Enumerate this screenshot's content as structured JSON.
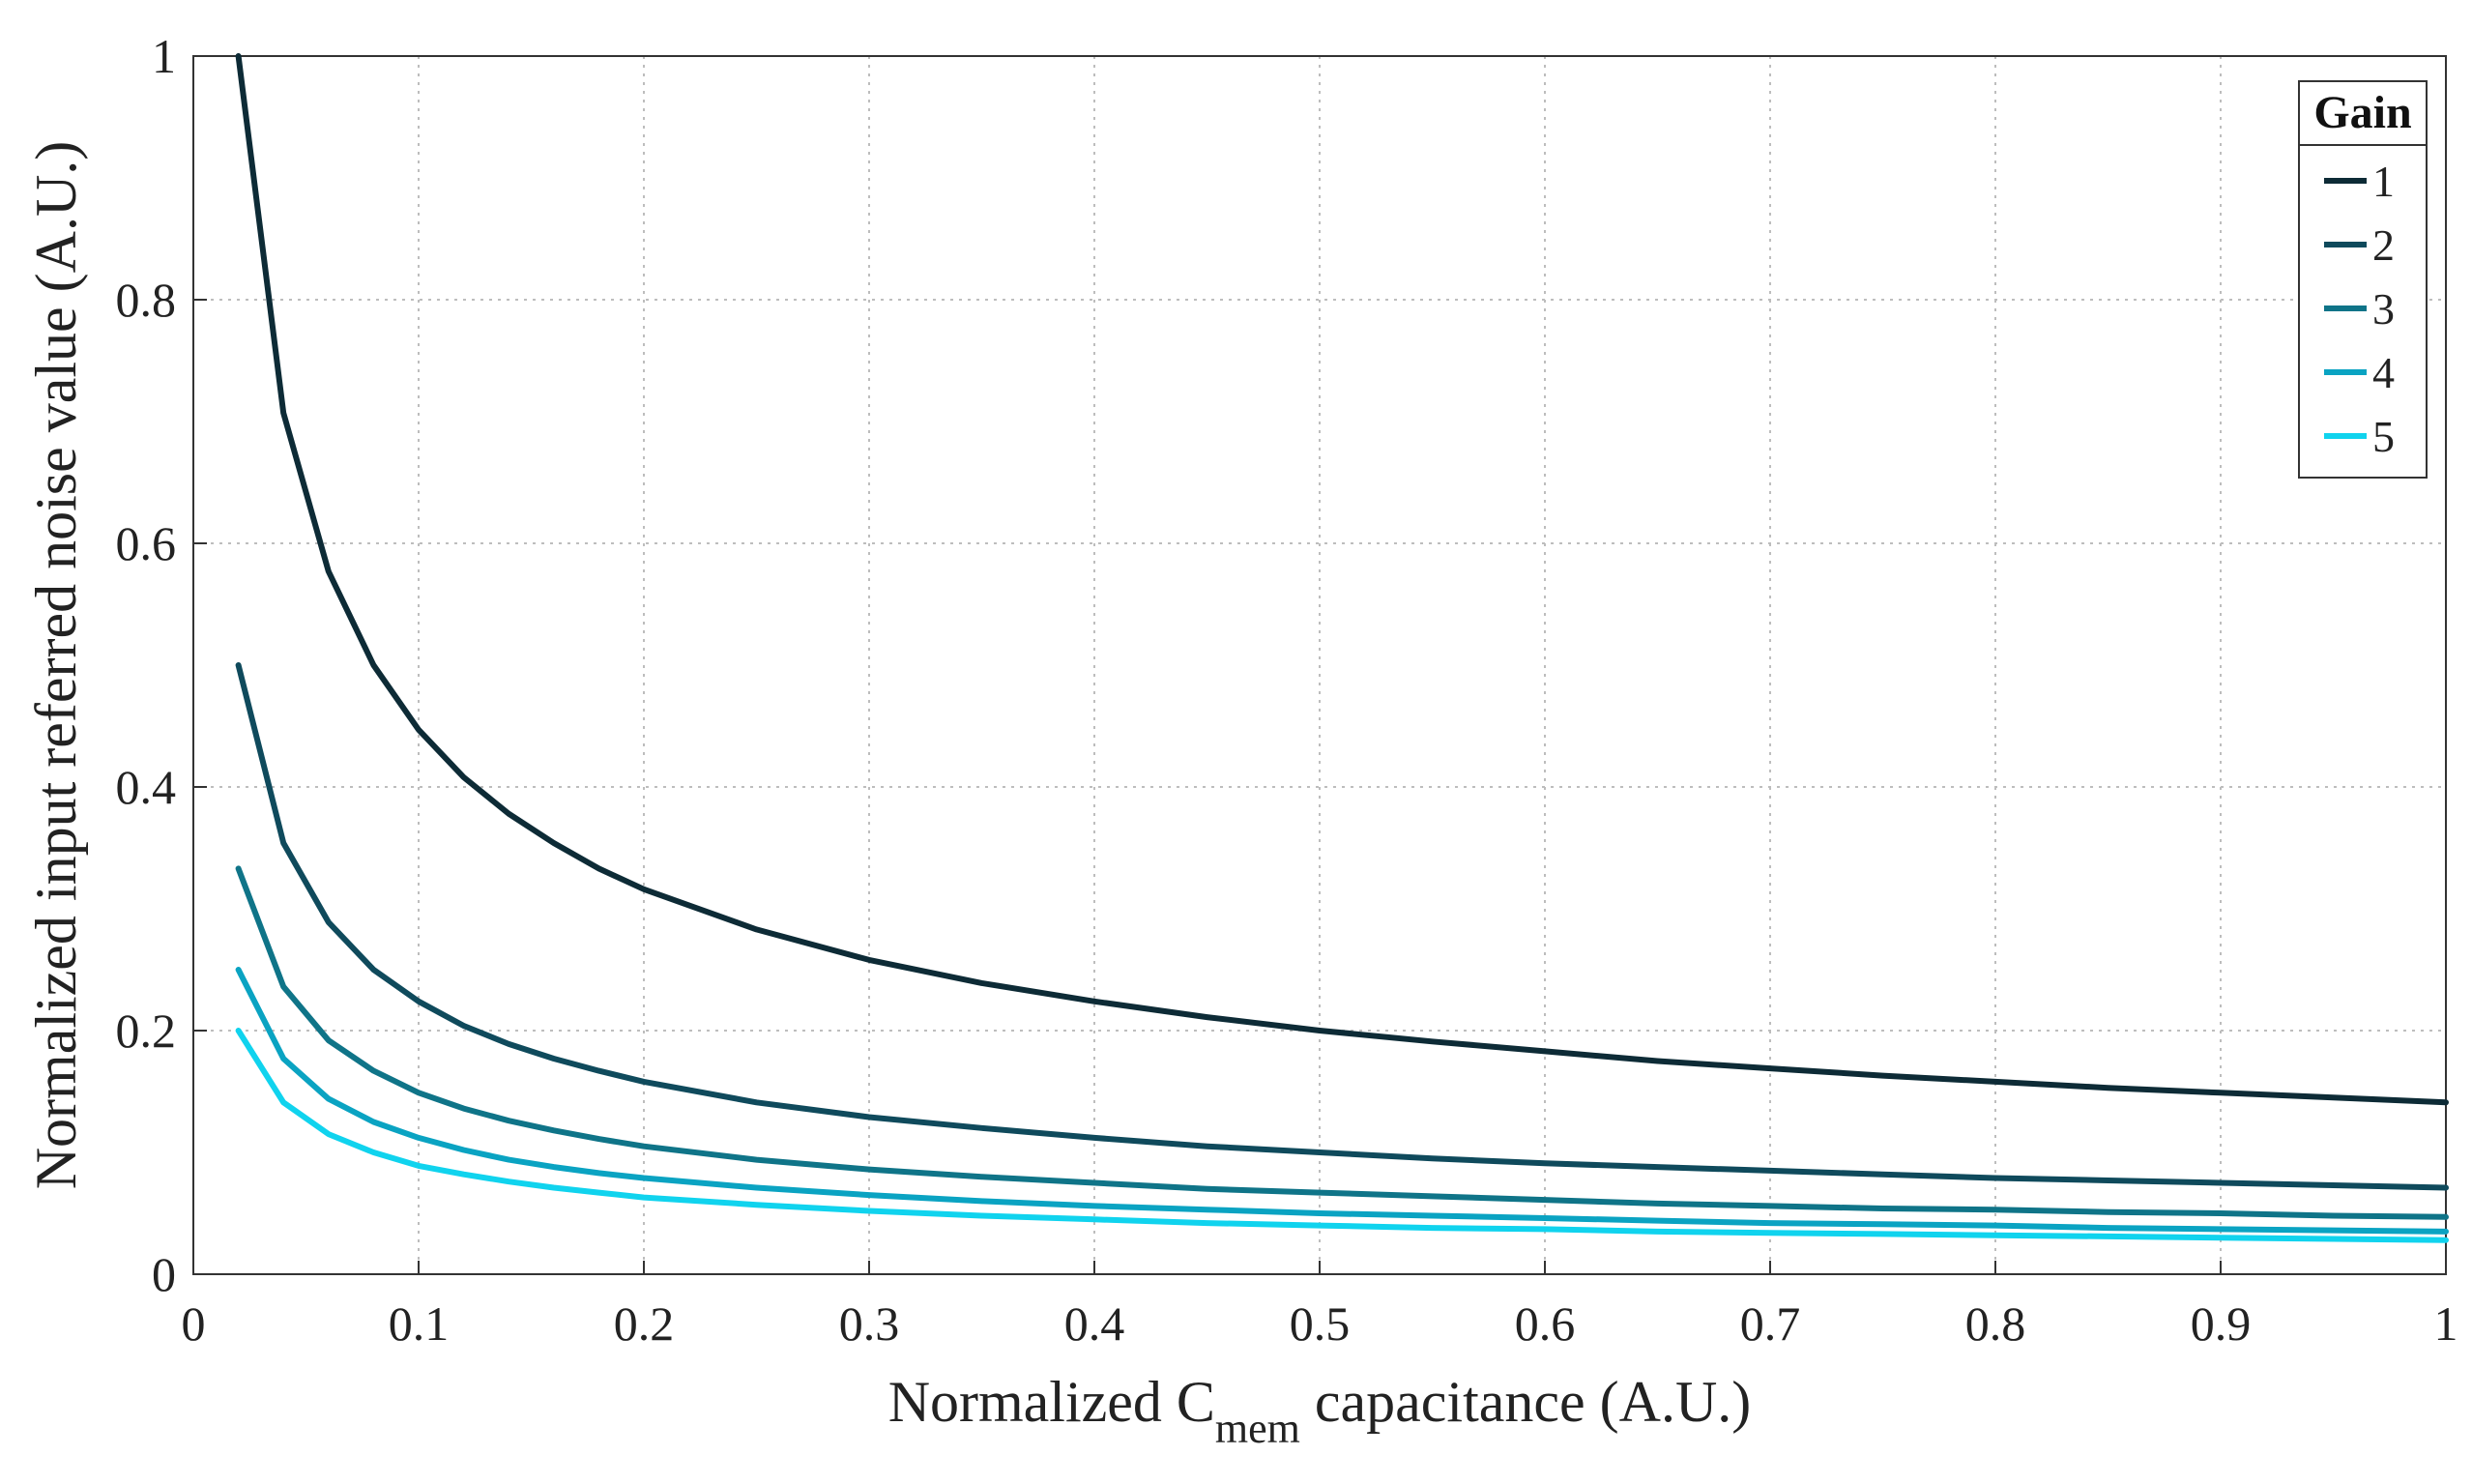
{
  "chart_data": {
    "type": "line",
    "title": "",
    "xlabel": {
      "prefix": "Normalized C",
      "subscript": "mem",
      "suffix": " capacitance (A.U.)"
    },
    "ylabel": "Normalized input referred noise value (A.U.)",
    "xlim": [
      0,
      1
    ],
    "ylim": [
      0,
      1
    ],
    "grid": true,
    "x_ticks": [
      "0",
      "0.1",
      "0.2",
      "0.3",
      "0.4",
      "0.5",
      "0.6",
      "0.7",
      "0.8",
      "0.9",
      "1"
    ],
    "y_ticks": [
      "0",
      "0.2",
      "0.4",
      "0.6",
      "0.8",
      "1"
    ],
    "legend": {
      "title": "Gain",
      "position": "top-right"
    },
    "x": [
      0.02,
      0.04,
      0.06,
      0.08,
      0.1,
      0.12,
      0.14,
      0.16,
      0.18,
      0.2,
      0.25,
      0.3,
      0.35,
      0.4,
      0.45,
      0.5,
      0.55,
      0.6,
      0.65,
      0.7,
      0.75,
      0.8,
      0.85,
      0.9,
      0.95,
      1.0
    ],
    "series": [
      {
        "name": "1",
        "color": "#0d2b36",
        "values": [
          1.0,
          0.707,
          0.577,
          0.5,
          0.447,
          0.408,
          0.378,
          0.354,
          0.333,
          0.316,
          0.283,
          0.258,
          0.239,
          0.224,
          0.211,
          0.2,
          0.191,
          0.183,
          0.175,
          0.169,
          0.163,
          0.158,
          0.153,
          0.149,
          0.145,
          0.141
        ]
      },
      {
        "name": "2",
        "color": "#0f4a5c",
        "values": [
          0.5,
          0.354,
          0.289,
          0.25,
          0.224,
          0.204,
          0.189,
          0.177,
          0.167,
          0.158,
          0.141,
          0.129,
          0.12,
          0.112,
          0.105,
          0.1,
          0.095,
          0.091,
          0.088,
          0.085,
          0.082,
          0.079,
          0.077,
          0.075,
          0.073,
          0.071
        ]
      },
      {
        "name": "3",
        "color": "#0f7488",
        "values": [
          0.333,
          0.236,
          0.192,
          0.167,
          0.149,
          0.136,
          0.126,
          0.118,
          0.111,
          0.105,
          0.094,
          0.086,
          0.08,
          0.075,
          0.07,
          0.067,
          0.064,
          0.061,
          0.058,
          0.056,
          0.054,
          0.053,
          0.051,
          0.05,
          0.048,
          0.047
        ]
      },
      {
        "name": "4",
        "color": "#0aa3c2",
        "values": [
          0.25,
          0.177,
          0.144,
          0.125,
          0.112,
          0.102,
          0.094,
          0.088,
          0.083,
          0.079,
          0.071,
          0.065,
          0.06,
          0.056,
          0.053,
          0.05,
          0.048,
          0.046,
          0.044,
          0.042,
          0.041,
          0.04,
          0.038,
          0.037,
          0.036,
          0.035
        ]
      },
      {
        "name": "5",
        "color": "#10d3ee",
        "values": [
          0.2,
          0.141,
          0.115,
          0.1,
          0.089,
          0.082,
          0.076,
          0.071,
          0.067,
          0.063,
          0.057,
          0.052,
          0.048,
          0.045,
          0.042,
          0.04,
          0.038,
          0.037,
          0.035,
          0.034,
          0.033,
          0.032,
          0.031,
          0.03,
          0.029,
          0.028
        ]
      }
    ]
  }
}
